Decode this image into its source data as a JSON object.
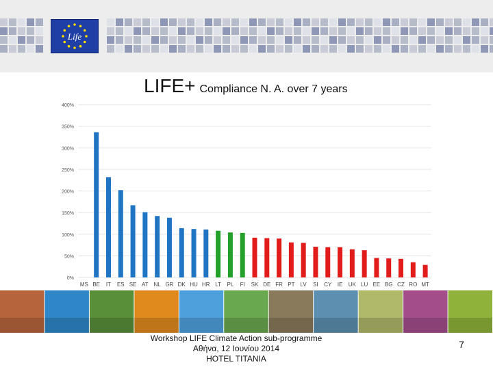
{
  "header": {
    "logo_text": "Life",
    "colors": {
      "band": "#ededed",
      "flag": "#1f3fa6",
      "star": "#ffdd00",
      "tiles": [
        "#c9ccd6",
        "#aab0c4",
        "#8e97b5",
        "#dfe1e8",
        "#b7bccb"
      ]
    }
  },
  "slide": {
    "title_main": "LIFE+",
    "title_sub": "Compliance N. A. over 7 years"
  },
  "chart_data": {
    "type": "bar",
    "categories": [
      "MS",
      "BE",
      "IT",
      "ES",
      "SE",
      "AT",
      "NL",
      "GR",
      "DK",
      "HU",
      "HR",
      "LT",
      "PL",
      "FI",
      "SK",
      "DE",
      "FR",
      "PT",
      "LV",
      "SI",
      "CY",
      "IE",
      "UK",
      "LU",
      "EE",
      "BG",
      "CZ",
      "RO",
      "MT"
    ],
    "values": [
      null,
      336,
      232,
      202,
      167,
      151,
      142,
      138,
      114,
      112,
      111,
      108,
      104,
      103,
      92,
      91,
      90,
      81,
      80,
      71,
      70,
      70,
      65,
      63,
      45,
      44,
      43,
      35,
      29
    ],
    "bar_colors": [
      "none",
      "#1f74c4",
      "#1f74c4",
      "#1f74c4",
      "#1f74c4",
      "#1f74c4",
      "#1f74c4",
      "#1f74c4",
      "#1f74c4",
      "#1f74c4",
      "#1f74c4",
      "#22a02a",
      "#22a02a",
      "#22a02a",
      "#e21b1b",
      "#e21b1b",
      "#e21b1b",
      "#e21b1b",
      "#e21b1b",
      "#e21b1b",
      "#e21b1b",
      "#e21b1b",
      "#e21b1b",
      "#e21b1b",
      "#e21b1b",
      "#e21b1b",
      "#e21b1b",
      "#e21b1b",
      "#e21b1b"
    ],
    "ylim": [
      0,
      400
    ],
    "yticks": [
      "0%",
      "50%",
      "100%",
      "150%",
      "200%",
      "250%",
      "300%",
      "350%",
      "400%"
    ],
    "grid": true,
    "legend": "none"
  },
  "photos": {
    "colors": [
      "#b5643c",
      "#2f86c8",
      "#5a8f3a",
      "#e08a1e",
      "#4ea0dc",
      "#6aa84f",
      "#8a7a5c",
      "#5c8fb0",
      "#b0b86a",
      "#a34d8a",
      "#8fb23a"
    ]
  },
  "footer": {
    "line1": "Workshop LIFE Climate Action sub-programme",
    "line2": "Αθήνα, 12 Ιουνίου 2014",
    "line3": "HOTEL TITANIA",
    "page_number": "7"
  }
}
